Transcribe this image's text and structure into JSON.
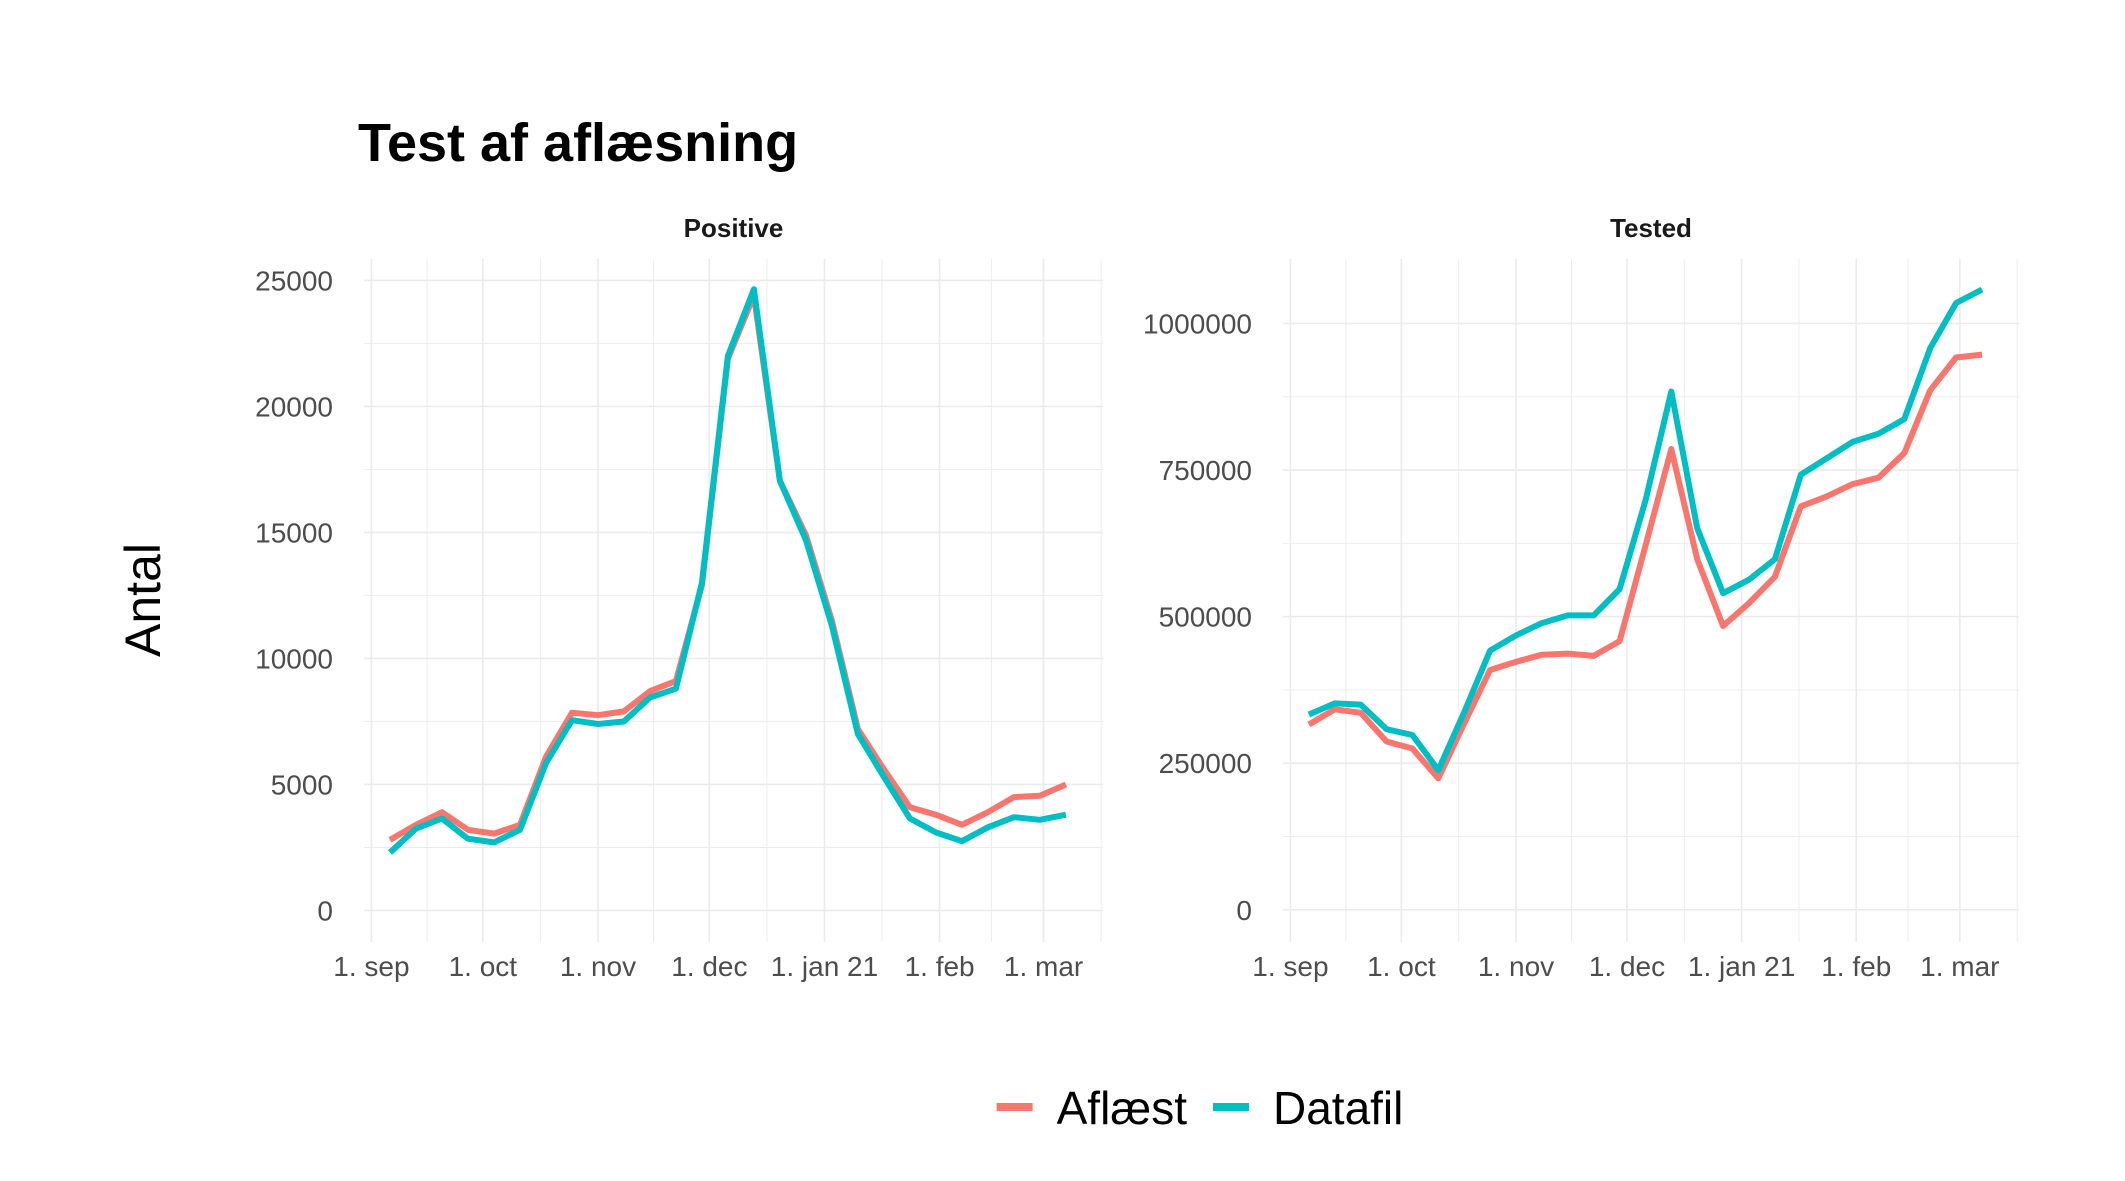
{
  "title": "Test af aflæsning",
  "ylabel": "Antal",
  "legend": {
    "position": "bottom"
  },
  "chart_data": [
    {
      "type": "line",
      "facet_title": "Positive",
      "grid": true,
      "xlim": [
        "2020-08-30",
        "2021-03-17"
      ],
      "ylim": [
        -1250,
        25850
      ],
      "x_ticks": [
        {
          "value": "2020-09-01",
          "label": "1. sep"
        },
        {
          "value": "2020-10-01",
          "label": "1. oct"
        },
        {
          "value": "2020-11-01",
          "label": "1. nov"
        },
        {
          "value": "2020-12-01",
          "label": "1. dec"
        },
        {
          "value": "2021-01-01",
          "label": "1. jan 21"
        },
        {
          "value": "2021-02-01",
          "label": "1. feb"
        },
        {
          "value": "2021-03-01",
          "label": "1. mar"
        }
      ],
      "y_ticks": [
        0,
        5000,
        10000,
        15000,
        20000,
        25000
      ],
      "x": [
        "2020-09-06",
        "2020-09-13",
        "2020-09-20",
        "2020-09-27",
        "2020-10-04",
        "2020-10-11",
        "2020-10-18",
        "2020-10-25",
        "2020-11-01",
        "2020-11-08",
        "2020-11-15",
        "2020-11-22",
        "2020-11-29",
        "2020-12-06",
        "2020-12-13",
        "2020-12-20",
        "2020-12-27",
        "2021-01-03",
        "2021-01-10",
        "2021-01-17",
        "2021-01-24",
        "2021-01-31",
        "2021-02-07",
        "2021-02-14",
        "2021-02-21",
        "2021-02-28",
        "2021-03-07"
      ],
      "series": [
        {
          "name": "Aflæst",
          "color": "#F8766D",
          "values": [
            2800,
            3400,
            3900,
            3200,
            3050,
            3400,
            6100,
            7850,
            7750,
            7900,
            8700,
            9100,
            12900,
            21900,
            24400,
            17050,
            14900,
            11500,
            7200,
            5600,
            4100,
            3800,
            3400,
            3900,
            4500,
            4550,
            5000
          ]
        },
        {
          "name": "Datafil",
          "color": "#00BFC4",
          "values": [
            2300,
            3250,
            3650,
            2850,
            2700,
            3200,
            5850,
            7550,
            7400,
            7500,
            8450,
            8800,
            13000,
            22000,
            24650,
            17050,
            14700,
            11300,
            7000,
            5300,
            3650,
            3100,
            2750,
            3300,
            3700,
            3600,
            3800
          ]
        }
      ]
    },
    {
      "type": "line",
      "facet_title": "Tested",
      "grid": true,
      "xlim": [
        "2020-08-30",
        "2021-03-17"
      ],
      "ylim": [
        -55000,
        1110000
      ],
      "x_ticks": [
        {
          "value": "2020-09-01",
          "label": "1. sep"
        },
        {
          "value": "2020-10-01",
          "label": "1. oct"
        },
        {
          "value": "2020-11-01",
          "label": "1. nov"
        },
        {
          "value": "2020-12-01",
          "label": "1. dec"
        },
        {
          "value": "2021-01-01",
          "label": "1. jan 21"
        },
        {
          "value": "2021-02-01",
          "label": "1. feb"
        },
        {
          "value": "2021-03-01",
          "label": "1. mar"
        }
      ],
      "y_ticks": [
        0,
        250000,
        500000,
        750000,
        1000000
      ],
      "x": [
        "2020-09-06",
        "2020-09-13",
        "2020-09-20",
        "2020-09-27",
        "2020-10-04",
        "2020-10-11",
        "2020-10-18",
        "2020-10-25",
        "2020-11-01",
        "2020-11-08",
        "2020-11-15",
        "2020-11-22",
        "2020-11-29",
        "2020-12-06",
        "2020-12-13",
        "2020-12-20",
        "2020-12-27",
        "2021-01-03",
        "2021-01-10",
        "2021-01-17",
        "2021-01-24",
        "2021-01-31",
        "2021-02-07",
        "2021-02-14",
        "2021-02-21",
        "2021-02-28",
        "2021-03-07"
      ],
      "series": [
        {
          "name": "Aflæst",
          "color": "#F8766D",
          "values": [
            316000,
            342000,
            336000,
            287000,
            275000,
            224000,
            318000,
            409000,
            423000,
            435000,
            437000,
            433000,
            458000,
            621000,
            786000,
            598000,
            484000,
            523000,
            568000,
            688000,
            705000,
            726000,
            737000,
            779000,
            886000,
            942000,
            947000
          ]
        },
        {
          "name": "Datafil",
          "color": "#00BFC4",
          "values": [
            333000,
            352000,
            350000,
            308000,
            298000,
            238000,
            337000,
            442000,
            468000,
            489000,
            502000,
            502000,
            547000,
            698000,
            884000,
            651000,
            540000,
            563000,
            598000,
            742000,
            770000,
            798000,
            812000,
            837000,
            958000,
            1035000,
            1058000
          ]
        }
      ]
    }
  ]
}
